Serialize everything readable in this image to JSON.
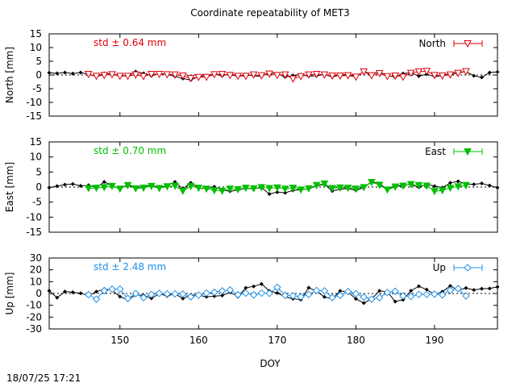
{
  "chart_data": {
    "type": "line",
    "title": "Coordinate repeatability of MET3",
    "xlabel": "DOY",
    "timestamp": "18/07/25 17:21",
    "xlim": [
      141,
      198
    ],
    "xticks": [
      "150",
      "160",
      "170",
      "180",
      "190"
    ],
    "reference_series": {
      "color": "#000000",
      "x": [
        141,
        142,
        143,
        144,
        145,
        146,
        147,
        148,
        149,
        150,
        151,
        152,
        153,
        154,
        155,
        156,
        157,
        158,
        159,
        160,
        161,
        162,
        163,
        164,
        165,
        166,
        167,
        168,
        169,
        170,
        171,
        172,
        173,
        174,
        175,
        176,
        177,
        178,
        179,
        180,
        181,
        182,
        183,
        184,
        185,
        186,
        187,
        188,
        189,
        190,
        191,
        192,
        193,
        194,
        195,
        196,
        197,
        198
      ],
      "north": [
        0.8,
        0.6,
        0.9,
        0.5,
        0.9,
        0.2,
        -0.5,
        0.6,
        0.3,
        -0.2,
        -0.4,
        1.2,
        0.6,
        -0.3,
        0.5,
        0.2,
        -0.5,
        -1.3,
        -1.8,
        -0.6,
        -0.2,
        0.3,
        -0.3,
        0.5,
        -0.6,
        0.2,
        -0.3,
        -0.5,
        1.0,
        0.4,
        -0.7,
        -0.2,
        0.1,
        -0.4,
        -0.3,
        0.2,
        -0.7,
        -0.1,
        0.2,
        -0.5,
        1.2,
        0.4,
        1.1,
        -0.2,
        -0.8,
        0.5,
        0.8,
        -0.4,
        0.3,
        -0.6,
        -0.2,
        0.6,
        1.0,
        1.2,
        -0.3,
        -0.9,
        0.9,
        1.1
      ],
      "east": [
        -0.2,
        0.3,
        0.8,
        1.0,
        0.4,
        0.6,
        -0.2,
        1.7,
        0.4,
        -0.6,
        0.8,
        -0.2,
        0.2,
        0.6,
        -0.3,
        0.5,
        1.7,
        -0.6,
        1.4,
        -0.4,
        -0.6,
        0.1,
        -1.0,
        -1.4,
        -1.0,
        -0.4,
        -0.6,
        -0.2,
        -2.3,
        -1.7,
        -1.9,
        -1.1,
        -0.9,
        -0.6,
        0.4,
        0.9,
        -1.3,
        -0.7,
        -0.5,
        -1.1,
        -0.2,
        1.8,
        1.1,
        -0.7,
        0.4,
        0.6,
        0.8,
        -0.1,
        0.9,
        0.3,
        -0.2,
        1.4,
        1.9,
        1.0,
        0.9,
        1.2,
        0.5,
        -0.2
      ],
      "up": [
        2.3,
        -3.6,
        1.6,
        1.0,
        0.2,
        -1.8,
        1.5,
        3.8,
        2.6,
        -2.6,
        -5.5,
        -1.2,
        -1.5,
        -4.1,
        -0.3,
        -2.1,
        -0.2,
        -4.3,
        -1.2,
        -1.4,
        -2.8,
        -2.3,
        -1.7,
        1.0,
        -2.8,
        4.8,
        6.0,
        8.0,
        2.2,
        0.4,
        -2.8,
        -4.4,
        -5.2,
        4.9,
        1.9,
        -2.9,
        -4.6,
        2.2,
        1.0,
        -4.5,
        -8.1,
        -4.5,
        2.2,
        1.5,
        -6.8,
        -5.3,
        2.3,
        6.1,
        3.3,
        -0.8,
        1.5,
        6.4,
        2.7,
        4.6,
        3.0,
        4.0,
        4.2,
        5.5
      ]
    },
    "panels": [
      {
        "ylabel": "North [mm]",
        "legend": "North",
        "std_label": "std ± 0.64 mm",
        "color": "#e0000a",
        "marker": "open-triangle-down",
        "ylim": [
          -15,
          15
        ],
        "yticks": [
          "15",
          "10",
          "5",
          "0",
          "-5",
          "-10",
          "-15"
        ],
        "key": "north",
        "x": [
          146,
          147,
          148,
          149,
          150,
          151,
          152,
          153,
          154,
          155,
          156,
          157,
          158,
          159,
          160,
          161,
          162,
          163,
          164,
          165,
          166,
          167,
          168,
          169,
          170,
          171,
          172,
          173,
          174,
          175,
          176,
          177,
          178,
          179,
          180,
          181,
          182,
          183,
          184,
          185,
          186,
          187,
          188,
          189,
          190,
          191,
          192,
          193,
          194
        ],
        "y": [
          0.3,
          -0.4,
          -0.1,
          0.2,
          -0.4,
          -0.4,
          0.1,
          -0.5,
          0.3,
          0.3,
          0.2,
          0.1,
          -0.3,
          -1.2,
          -0.8,
          -0.8,
          0.2,
          0.3,
          -0.1,
          -0.4,
          -0.4,
          0.1,
          -0.2,
          0.4,
          -0.1,
          0.1,
          -1.4,
          -0.5,
          0.1,
          0.3,
          0.1,
          -0.3,
          -0.3,
          -0.2,
          -0.7,
          1.2,
          -0.2,
          0.6,
          -0.5,
          -0.3,
          -0.7,
          0.7,
          1.2,
          1.4,
          -0.1,
          -0.3,
          0.1,
          0.7,
          1.3
        ]
      },
      {
        "ylabel": "East [mm]",
        "legend": "East",
        "std_label": "std ± 0.70 mm",
        "color": "#00c000",
        "marker": "filled-triangle-down",
        "ylim": [
          -15,
          15
        ],
        "yticks": [
          "15",
          "10",
          "5",
          "0",
          "-5",
          "-10",
          "-15"
        ],
        "key": "east",
        "x": [
          146,
          147,
          148,
          149,
          150,
          151,
          152,
          153,
          154,
          155,
          156,
          157,
          158,
          159,
          160,
          161,
          162,
          163,
          164,
          165,
          166,
          167,
          168,
          169,
          170,
          171,
          172,
          173,
          174,
          175,
          176,
          177,
          178,
          179,
          180,
          181,
          182,
          183,
          184,
          185,
          186,
          187,
          188,
          189,
          190,
          191,
          192,
          193,
          194
        ],
        "y": [
          -0.4,
          -0.3,
          -0.1,
          0.3,
          -0.6,
          0.6,
          -0.5,
          -0.3,
          0.3,
          -0.4,
          0.2,
          0.4,
          -1.3,
          0.3,
          -0.3,
          -0.6,
          -1.1,
          -1.3,
          -0.6,
          -0.8,
          -0.3,
          -0.5,
          -0.1,
          -0.4,
          -0.2,
          -0.6,
          -0.3,
          -0.9,
          -0.5,
          0.6,
          1.1,
          -0.4,
          -0.2,
          -0.3,
          -0.6,
          -0.1,
          1.6,
          0.7,
          -0.9,
          0.1,
          0.4,
          0.9,
          0.6,
          0.4,
          -1.4,
          -1.1,
          -0.3,
          0.2,
          0.6
        ]
      },
      {
        "ylabel": "Up [mm]",
        "legend": "Up",
        "std_label": "std ± 2.48 mm",
        "color": "#1e90e8",
        "marker": "open-diamond",
        "ylim": [
          -30,
          30
        ],
        "yticks": [
          "30",
          "20",
          "10",
          "0",
          "-10",
          "-20",
          "-30"
        ],
        "key": "up",
        "x": [
          146,
          147,
          148,
          149,
          150,
          151,
          152,
          153,
          154,
          155,
          156,
          157,
          158,
          159,
          160,
          161,
          162,
          163,
          164,
          165,
          166,
          167,
          168,
          169,
          170,
          171,
          172,
          173,
          174,
          175,
          176,
          177,
          178,
          179,
          180,
          181,
          182,
          183,
          184,
          185,
          186,
          187,
          188,
          189,
          190,
          191,
          192,
          193,
          194
        ],
        "y": [
          -1.0,
          -4.8,
          2.3,
          3.6,
          3.8,
          -4.2,
          -0.1,
          -3.5,
          -0.8,
          0.1,
          -0.3,
          -0.3,
          -0.5,
          -2.8,
          -1.4,
          0.3,
          1.0,
          2.2,
          3.0,
          -1.1,
          0.3,
          -1.2,
          0.3,
          0.1,
          5.2,
          -1.6,
          -1.9,
          -2.7,
          -0.9,
          2.5,
          2.2,
          -3.4,
          -1.6,
          1.6,
          -0.2,
          -3.0,
          -4.8,
          -3.5,
          0.8,
          1.8,
          -2.1,
          -2.5,
          -0.8,
          -0.8,
          -0.6,
          -1.2,
          2.6,
          4.1,
          -2.1
        ]
      }
    ]
  }
}
